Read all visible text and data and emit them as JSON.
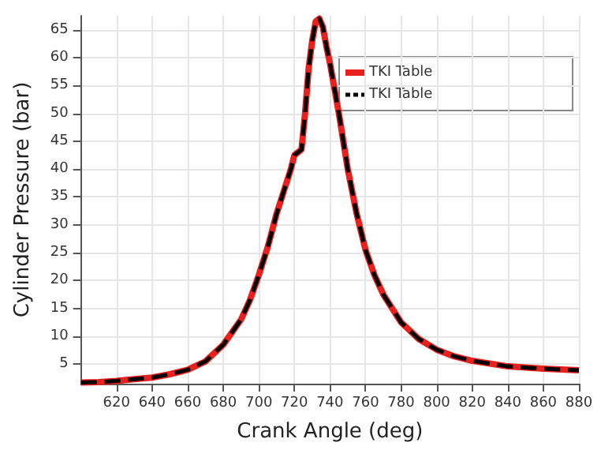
{
  "chart_data": {
    "type": "line",
    "xlabel": "Crank Angle (deg)",
    "ylabel": "Cylinder Pressure (bar)",
    "x": [
      600,
      610,
      620,
      630,
      640,
      650,
      660,
      670,
      680,
      690,
      695,
      700,
      705,
      710,
      715,
      718,
      720,
      722,
      724,
      726,
      728,
      730,
      732,
      734,
      736,
      738,
      740,
      745,
      750,
      755,
      760,
      765,
      770,
      780,
      790,
      800,
      810,
      820,
      840,
      860,
      880
    ],
    "series": [
      {
        "name": "TKI Table",
        "color": "#e8201e",
        "line_style": "solid",
        "values": [
          1.7,
          1.8,
          2.0,
          2.3,
          2.6,
          3.2,
          4.0,
          5.5,
          8.5,
          13,
          16.5,
          21,
          26,
          32,
          37,
          40,
          42.5,
          43,
          43.5,
          50,
          58,
          63,
          66.5,
          67,
          65.5,
          62,
          59,
          50,
          40,
          32,
          25.5,
          21,
          17.5,
          12.5,
          9.5,
          7.6,
          6.4,
          5.6,
          4.6,
          4.2,
          3.9
        ]
      },
      {
        "name": "TKI Table",
        "color": "#000000",
        "line_style": "dashed",
        "values": [
          1.7,
          1.8,
          2.0,
          2.3,
          2.6,
          3.2,
          4.0,
          5.5,
          8.5,
          13,
          16.5,
          21,
          26,
          32,
          37,
          40,
          42.5,
          43,
          43.5,
          50,
          58,
          63,
          66.5,
          67,
          65.5,
          62,
          59,
          50,
          40,
          32,
          25.5,
          21,
          17.5,
          12.5,
          9.5,
          7.6,
          6.4,
          5.6,
          4.6,
          4.2,
          3.9
        ]
      }
    ],
    "xlim": [
      600,
      880
    ],
    "ylim": [
      1.5,
      67.5
    ],
    "xticks": [
      620,
      640,
      660,
      680,
      700,
      720,
      740,
      760,
      780,
      800,
      820,
      840,
      860,
      880
    ],
    "yticks": [
      5,
      10,
      15,
      20,
      25,
      30,
      35,
      40,
      45,
      50,
      55,
      60,
      65
    ],
    "grid": true,
    "legend": "top right",
    "marker": "none"
  }
}
